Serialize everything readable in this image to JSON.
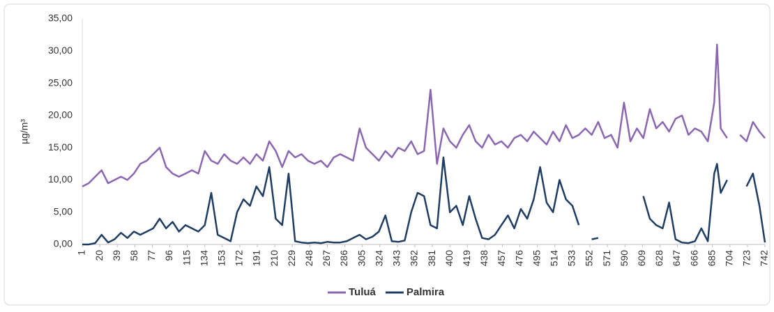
{
  "chart_data": {
    "type": "line",
    "y_label": "µg/m³",
    "x": [
      1,
      8,
      15,
      22,
      29,
      36,
      43,
      50,
      57,
      64,
      71,
      78,
      85,
      92,
      99,
      106,
      113,
      120,
      127,
      134,
      141,
      148,
      155,
      162,
      169,
      176,
      183,
      190,
      197,
      204,
      211,
      218,
      225,
      232,
      239,
      246,
      253,
      260,
      267,
      274,
      281,
      288,
      295,
      302,
      309,
      316,
      323,
      330,
      337,
      344,
      351,
      358,
      365,
      372,
      379,
      386,
      393,
      400,
      407,
      414,
      421,
      428,
      435,
      442,
      449,
      456,
      463,
      470,
      477,
      484,
      491,
      498,
      505,
      512,
      519,
      526,
      533,
      540,
      547,
      554,
      561,
      568,
      575,
      582,
      589,
      596,
      603,
      610,
      617,
      624,
      631,
      638,
      645,
      652,
      659,
      666,
      673,
      680,
      687,
      690,
      694,
      701,
      708,
      715,
      722,
      729,
      736,
      742
    ],
    "series": [
      {
        "name": "Tuluá",
        "color": "#8a67b0",
        "values": [
          9.0,
          9.5,
          10.5,
          11.5,
          9.5,
          10.0,
          10.5,
          10.0,
          11.0,
          12.5,
          13.0,
          14.0,
          15.0,
          12.0,
          11.0,
          10.5,
          11.0,
          11.5,
          11.0,
          14.5,
          13.0,
          12.5,
          14.0,
          13.0,
          12.5,
          13.5,
          12.5,
          14.0,
          13.0,
          16.0,
          14.5,
          12.0,
          14.5,
          13.5,
          14.0,
          13.0,
          12.5,
          13.0,
          12.0,
          13.5,
          14.0,
          13.5,
          13.0,
          18.0,
          15.0,
          14.0,
          13.0,
          14.5,
          13.5,
          15.0,
          14.5,
          16.0,
          14.0,
          14.5,
          24.0,
          12.5,
          18.0,
          16.0,
          15.0,
          17.0,
          18.5,
          16.0,
          15.0,
          17.0,
          15.5,
          16.0,
          15.0,
          16.5,
          17.0,
          16.0,
          17.5,
          16.5,
          15.5,
          17.5,
          16.0,
          18.5,
          16.5,
          17.0,
          18.0,
          17.0,
          19.0,
          16.5,
          17.0,
          15.0,
          22.0,
          16.0,
          18.0,
          16.5,
          21.0,
          18.0,
          19.0,
          17.5,
          19.5,
          20.0,
          17.0,
          18.0,
          17.5,
          16.0,
          22.0,
          31.0,
          18.0,
          16.5,
          null,
          17.0,
          16.0,
          19.0,
          17.5,
          16.5
        ]
      },
      {
        "name": "Palmira",
        "color": "#1f3d63",
        "values": [
          0,
          0,
          0.2,
          1.5,
          0.3,
          0.8,
          1.8,
          1.0,
          2.0,
          1.5,
          2.0,
          2.5,
          4.0,
          2.5,
          3.5,
          2.0,
          3.0,
          2.5,
          2.0,
          3.0,
          8.0,
          1.5,
          1.0,
          0.5,
          5.0,
          7.0,
          6.0,
          9.0,
          7.5,
          12.0,
          4.0,
          3.0,
          11.0,
          0.5,
          0.3,
          0.2,
          0.3,
          0.2,
          0.4,
          0.3,
          0.3,
          0.5,
          1.0,
          1.5,
          0.8,
          1.2,
          2.0,
          4.5,
          0.5,
          0.4,
          0.6,
          5.0,
          8.0,
          7.5,
          3.0,
          2.5,
          13.5,
          5.0,
          6.0,
          3.0,
          7.5,
          4.0,
          1.0,
          0.8,
          1.5,
          3.0,
          4.5,
          2.5,
          5.5,
          4.0,
          7.0,
          12.0,
          6.5,
          5.0,
          10.0,
          7.0,
          6.0,
          3.0,
          null,
          0.8,
          1.0,
          null,
          null,
          null,
          null,
          null,
          null,
          7.5,
          4.0,
          3.0,
          2.5,
          6.5,
          0.8,
          0.3,
          0.2,
          0.5,
          2.5,
          0.5,
          11.0,
          12.5,
          8.0,
          10.0,
          null,
          null,
          9.0,
          11.0,
          6.0,
          0.3
        ]
      }
    ],
    "xlim": [
      1,
      742
    ],
    "xticks": [
      1,
      20,
      39,
      58,
      77,
      96,
      115,
      134,
      153,
      172,
      191,
      210,
      229,
      248,
      267,
      286,
      305,
      324,
      343,
      362,
      381,
      400,
      419,
      438,
      457,
      476,
      495,
      514,
      533,
      552,
      571,
      590,
      609,
      628,
      647,
      666,
      685,
      704,
      723,
      742
    ],
    "ylim": [
      0,
      35
    ],
    "yticks": [
      {
        "value": 0,
        "label": "0,00"
      },
      {
        "value": 5,
        "label": "5,00"
      },
      {
        "value": 10,
        "label": "10,00"
      },
      {
        "value": 15,
        "label": "15,00"
      },
      {
        "value": 20,
        "label": "20,00"
      },
      {
        "value": 25,
        "label": "25,00"
      },
      {
        "value": 30,
        "label": "30,00"
      },
      {
        "value": 35,
        "label": "35,00"
      }
    ],
    "legend": "bottom"
  }
}
